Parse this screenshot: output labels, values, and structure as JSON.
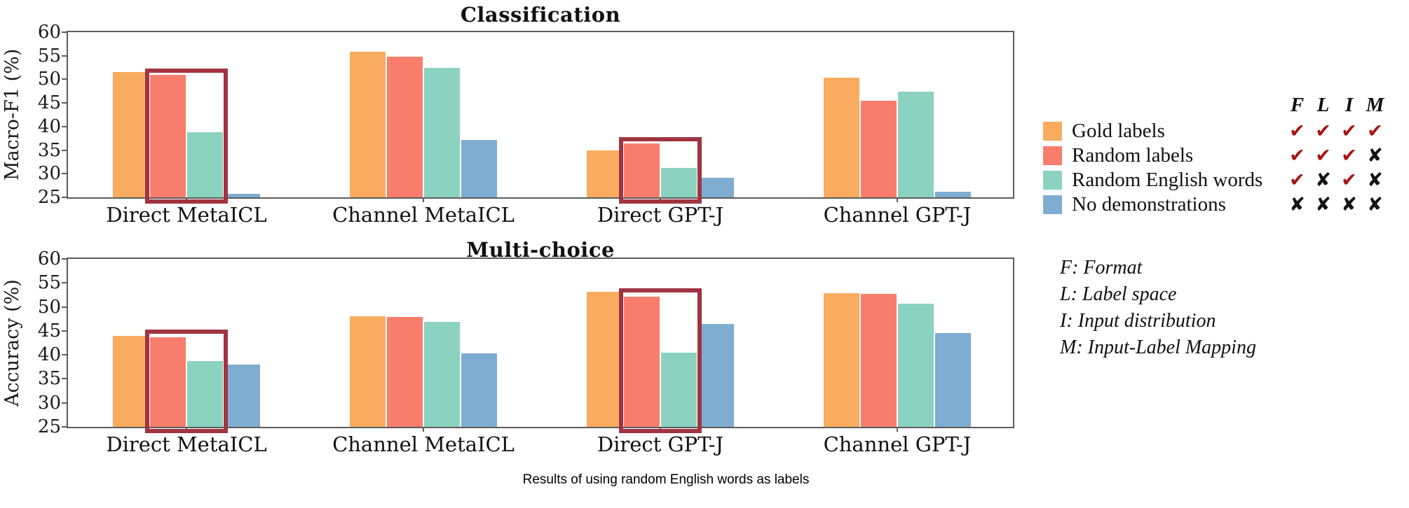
{
  "figure": {
    "caption": "Results of using random English words as labels"
  },
  "chart_data": [
    {
      "type": "bar",
      "title": "Classification",
      "ylabel": "Macro-F1 (%)",
      "ylim": [
        25,
        60
      ],
      "yticks": [
        60,
        55,
        50,
        45,
        40,
        35,
        30,
        25
      ],
      "grid": false,
      "categories": [
        "Direct MetaICL",
        "Channel MetaICL",
        "Direct GPT-J",
        "Channel GPT-J"
      ],
      "series": [
        {
          "name": "Gold labels",
          "color": "#F9AC60",
          "values": [
            51.6,
            55.8,
            35.0,
            50.4
          ]
        },
        {
          "name": "Random labels",
          "color": "#F87D6C",
          "values": [
            51.0,
            54.8,
            36.4,
            45.4
          ]
        },
        {
          "name": "Random English words",
          "color": "#8CD2C0",
          "values": [
            38.8,
            52.4,
            31.3,
            47.4
          ]
        },
        {
          "name": "No demonstrations",
          "color": "#7FADD1",
          "values": [
            25.7,
            37.1,
            29.1,
            26.2
          ]
        }
      ],
      "highlights": [
        {
          "category_index": 0,
          "bar_indices": [
            1,
            2
          ],
          "top_value": 52.3
        },
        {
          "category_index": 2,
          "bar_indices": [
            1,
            2
          ],
          "top_value": 37.8
        }
      ],
      "highlight_color": "#A03440"
    },
    {
      "type": "bar",
      "title": "Multi-choice",
      "ylabel": "Accuracy (%)",
      "ylim": [
        25,
        60
      ],
      "yticks": [
        60,
        55,
        50,
        45,
        40,
        35,
        30,
        25
      ],
      "grid": false,
      "categories": [
        "Direct MetaICL",
        "Channel MetaICL",
        "Direct GPT-J",
        "Channel GPT-J"
      ],
      "series": [
        {
          "name": "Gold labels",
          "color": "#F9AC60",
          "values": [
            44.0,
            48.0,
            53.2,
            52.9
          ]
        },
        {
          "name": "Random labels",
          "color": "#F87D6C",
          "values": [
            43.7,
            47.9,
            52.1,
            52.7
          ]
        },
        {
          "name": "Random English words",
          "color": "#8CD2C0",
          "values": [
            38.7,
            46.9,
            40.5,
            50.6
          ]
        },
        {
          "name": "No demonstrations",
          "color": "#7FADD1",
          "values": [
            38.0,
            40.3,
            46.5,
            44.6
          ]
        }
      ],
      "highlights": [
        {
          "category_index": 0,
          "bar_indices": [
            1,
            2
          ],
          "top_value": 45.2
        },
        {
          "category_index": 2,
          "bar_indices": [
            1,
            2
          ],
          "top_value": 53.9
        }
      ],
      "highlight_color": "#A03440"
    }
  ],
  "legend": {
    "header": [
      "F",
      "L",
      "I",
      "M"
    ],
    "check_color": "#A81414",
    "cross_color": "#121212",
    "items": [
      {
        "label": "Gold labels",
        "color": "#F9AC60",
        "flags": [
          "✔",
          "✔",
          "✔",
          "✔"
        ]
      },
      {
        "label": "Random labels",
        "color": "#F87D6C",
        "flags": [
          "✔",
          "✔",
          "✔",
          "✘"
        ]
      },
      {
        "label": "Random English words",
        "color": "#8CD2C0",
        "flags": [
          "✔",
          "✘",
          "✔",
          "✘"
        ]
      },
      {
        "label": "No demonstrations",
        "color": "#7FADD1",
        "flags": [
          "✘",
          "✘",
          "✘",
          "✘"
        ]
      }
    ]
  },
  "notes": [
    "F: Format",
    "L: Label space",
    "I: Input distribution",
    "M: Input-Label Mapping"
  ]
}
